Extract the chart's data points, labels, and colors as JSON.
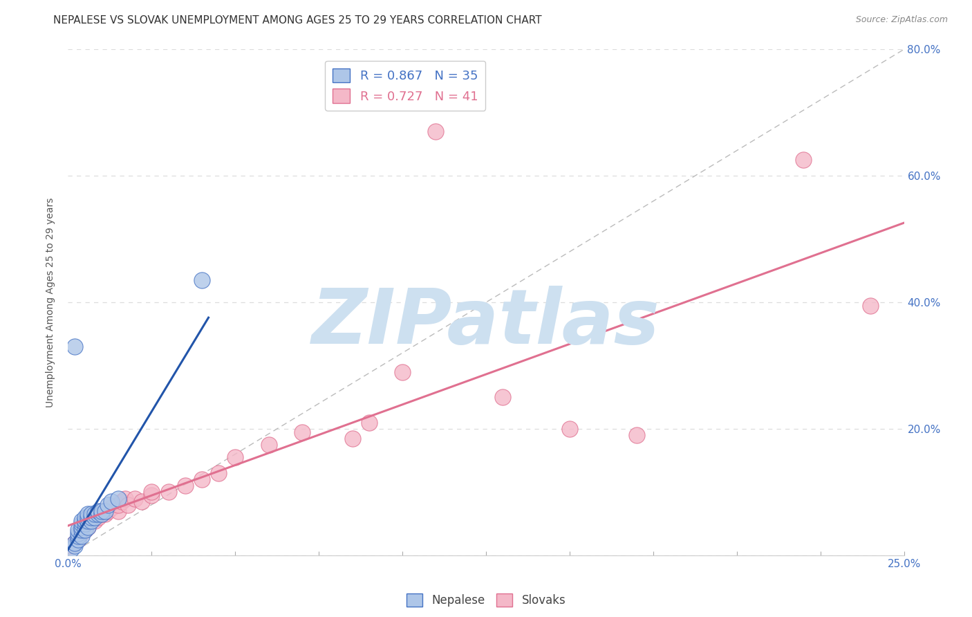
{
  "title": "NEPALESE VS SLOVAK UNEMPLOYMENT AMONG AGES 25 TO 29 YEARS CORRELATION CHART",
  "source": "Source: ZipAtlas.com",
  "ylabel": "Unemployment Among Ages 25 to 29 years",
  "xlim": [
    0.0,
    0.25
  ],
  "ylim": [
    0.0,
    0.8
  ],
  "xticks": [
    0.0,
    0.025,
    0.05,
    0.075,
    0.1,
    0.125,
    0.15,
    0.175,
    0.2,
    0.225,
    0.25
  ],
  "yticks": [
    0.0,
    0.2,
    0.4,
    0.6,
    0.8
  ],
  "yticklabels_right": [
    "",
    "20.0%",
    "40.0%",
    "60.0%",
    "80.0%"
  ],
  "nepalese_color": "#aec6e8",
  "nepalese_edge_color": "#4472c4",
  "slovak_color": "#f4b8c8",
  "slovak_edge_color": "#e07090",
  "nepalese_line_color": "#2255aa",
  "slovak_line_color": "#e07090",
  "diagonal_color": "#bbbbbb",
  "watermark_color": "#cde0f0",
  "watermark_text": "ZIPatlas",
  "background_color": "#ffffff",
  "grid_color": "#dddddd",
  "title_fontsize": 11,
  "axis_tick_color": "#4472c4",
  "tick_fontsize": 11,
  "nepalese_x": [
    0.001,
    0.002,
    0.002,
    0.003,
    0.003,
    0.003,
    0.003,
    0.004,
    0.004,
    0.004,
    0.004,
    0.004,
    0.005,
    0.005,
    0.005,
    0.005,
    0.006,
    0.006,
    0.006,
    0.006,
    0.007,
    0.007,
    0.007,
    0.008,
    0.008,
    0.009,
    0.009,
    0.01,
    0.01,
    0.011,
    0.012,
    0.013,
    0.015,
    0.04,
    0.002
  ],
  "nepalese_y": [
    0.01,
    0.015,
    0.02,
    0.025,
    0.03,
    0.035,
    0.04,
    0.03,
    0.04,
    0.045,
    0.05,
    0.055,
    0.04,
    0.05,
    0.055,
    0.06,
    0.045,
    0.055,
    0.06,
    0.065,
    0.055,
    0.06,
    0.065,
    0.06,
    0.065,
    0.065,
    0.07,
    0.065,
    0.07,
    0.07,
    0.08,
    0.085,
    0.09,
    0.435,
    0.33
  ],
  "slovak_x": [
    0.001,
    0.002,
    0.003,
    0.004,
    0.005,
    0.005,
    0.006,
    0.007,
    0.007,
    0.008,
    0.009,
    0.01,
    0.01,
    0.011,
    0.012,
    0.013,
    0.015,
    0.015,
    0.016,
    0.017,
    0.018,
    0.02,
    0.022,
    0.025,
    0.025,
    0.03,
    0.035,
    0.04,
    0.045,
    0.05,
    0.06,
    0.07,
    0.085,
    0.09,
    0.1,
    0.11,
    0.13,
    0.15,
    0.17,
    0.22,
    0.24
  ],
  "slovak_y": [
    0.015,
    0.02,
    0.025,
    0.035,
    0.04,
    0.05,
    0.045,
    0.055,
    0.06,
    0.055,
    0.06,
    0.065,
    0.07,
    0.065,
    0.07,
    0.075,
    0.07,
    0.08,
    0.085,
    0.09,
    0.08,
    0.09,
    0.085,
    0.095,
    0.1,
    0.1,
    0.11,
    0.12,
    0.13,
    0.155,
    0.175,
    0.195,
    0.185,
    0.21,
    0.29,
    0.67,
    0.25,
    0.2,
    0.19,
    0.625,
    0.395
  ]
}
